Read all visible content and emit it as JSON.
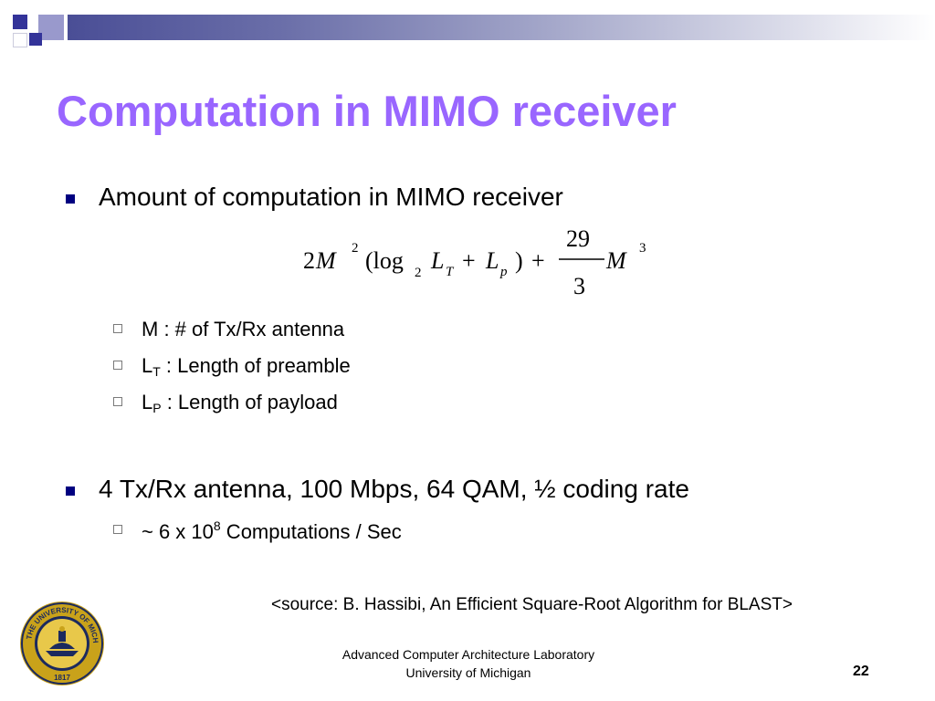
{
  "slide": {
    "title": "Computation in MIMO receiver",
    "bullets": [
      {
        "text": "Amount of computation in MIMO receiver",
        "formula": {
          "c2": "2",
          "M": "M",
          "exp2": "2",
          "open": "(log",
          "sub2": "2",
          "L": "L",
          "T": "T",
          "plus": "+",
          "p": "p",
          "close": ")",
          "num": "29",
          "den": "3",
          "exp3": "3"
        },
        "subitems": [
          {
            "main": "M : # of Tx/Rx antenna"
          },
          {
            "main": "L",
            "sub": "T",
            "rest": " : Length of preamble"
          },
          {
            "main": "L",
            "sub": "P",
            "rest": " : Length of payload"
          }
        ]
      },
      {
        "text": "4 Tx/Rx antenna, 100 Mbps, 64 QAM, ½ coding rate",
        "subitems": [
          {
            "main": "~ 6 x 10",
            "sup": "8",
            "rest": " Computations / Sec"
          }
        ]
      }
    ],
    "source": "<source: B. Hassibi,  An Efficient Square-Root Algorithm for BLAST>"
  },
  "footer": {
    "lab": "Advanced Computer Architecture Laboratory",
    "university": "University of Michigan",
    "page_number": "22"
  },
  "seal": {
    "ring_text": "THE UNIVERSITY OF MICHIGAN",
    "year": "1817"
  },
  "colors": {
    "title": "#9966ff",
    "bullet": "#000080",
    "deco_dark": "#333399",
    "deco_light": "#9999cc",
    "seal_gold": "#c9a21a",
    "seal_navy": "#1c2a5e"
  }
}
